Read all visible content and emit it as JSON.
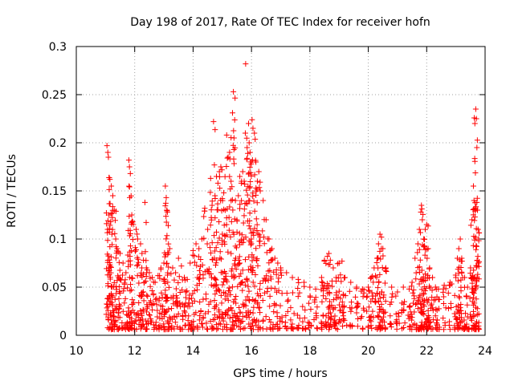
{
  "chart_data": {
    "type": "scatter",
    "title": "Day 198 of 2017, Rate Of TEC Index for receiver hofn",
    "xlabel": "GPS time / hours",
    "ylabel": "ROTI / TECUs",
    "xlim": [
      10,
      24
    ],
    "ylim": [
      0,
      0.3
    ],
    "xticks": [
      10,
      12,
      14,
      16,
      18,
      20,
      22,
      24
    ],
    "xtick_labels": [
      "10",
      "12",
      "14",
      "16",
      "18",
      "20",
      "22",
      "24"
    ],
    "yticks": [
      0,
      0.05,
      0.1,
      0.15,
      0.2,
      0.25,
      0.3
    ],
    "ytick_labels": [
      "0",
      "0.05",
      "0.1",
      "0.15",
      "0.2",
      "0.25",
      "0.3"
    ],
    "grid": true,
    "marker": "+",
    "color": "#ff0000",
    "series": [
      {
        "name": "ROTI",
        "points": [
          [
            11.05,
            0.197
          ],
          [
            11.08,
            0.19
          ],
          [
            11.1,
            0.185
          ],
          [
            11.15,
            0.162
          ],
          [
            11.2,
            0.155
          ],
          [
            11.25,
            0.145
          ],
          [
            11.12,
            0.125
          ],
          [
            11.18,
            0.118
          ],
          [
            11.3,
            0.13
          ],
          [
            11.22,
            0.105
          ],
          [
            11.35,
            0.1
          ],
          [
            11.4,
            0.09
          ],
          [
            11.5,
            0.085
          ],
          [
            11.45,
            0.06
          ],
          [
            11.6,
            0.075
          ],
          [
            11.7,
            0.065
          ],
          [
            11.8,
            0.182
          ],
          [
            11.82,
            0.175
          ],
          [
            11.85,
            0.168
          ],
          [
            11.83,
            0.143
          ],
          [
            11.9,
            0.125
          ],
          [
            11.95,
            0.115
          ],
          [
            12.05,
            0.11
          ],
          [
            12.1,
            0.1
          ],
          [
            12.2,
            0.095
          ],
          [
            12.25,
            0.085
          ],
          [
            12.3,
            0.078
          ],
          [
            12.35,
            0.138
          ],
          [
            12.4,
            0.07
          ],
          [
            12.5,
            0.065
          ],
          [
            12.6,
            0.06
          ],
          [
            12.7,
            0.055
          ],
          [
            12.8,
            0.062
          ],
          [
            12.9,
            0.07
          ],
          [
            13.0,
            0.075
          ],
          [
            13.05,
            0.155
          ],
          [
            13.08,
            0.143
          ],
          [
            13.1,
            0.13
          ],
          [
            13.12,
            0.128
          ],
          [
            13.2,
            0.09
          ],
          [
            13.3,
            0.07
          ],
          [
            13.4,
            0.065
          ],
          [
            13.5,
            0.08
          ],
          [
            13.6,
            0.072
          ],
          [
            13.7,
            0.06
          ],
          [
            13.8,
            0.058
          ],
          [
            13.9,
            0.075
          ],
          [
            14.0,
            0.088
          ],
          [
            14.1,
            0.095
          ],
          [
            14.2,
            0.09
          ],
          [
            14.3,
            0.1
          ],
          [
            14.4,
            0.132
          ],
          [
            14.5,
            0.11
          ],
          [
            14.6,
            0.163
          ],
          [
            14.65,
            0.135
          ],
          [
            14.7,
            0.222
          ],
          [
            14.75,
            0.145
          ],
          [
            14.8,
            0.165
          ],
          [
            14.85,
            0.158
          ],
          [
            14.9,
            0.17
          ],
          [
            14.95,
            0.175
          ],
          [
            15.0,
            0.142
          ],
          [
            15.05,
            0.148
          ],
          [
            15.1,
            0.13
          ],
          [
            15.15,
            0.208
          ],
          [
            15.2,
            0.185
          ],
          [
            15.25,
            0.19
          ],
          [
            15.3,
            0.16
          ],
          [
            15.35,
            0.231
          ],
          [
            15.38,
            0.253
          ],
          [
            15.4,
            0.205
          ],
          [
            15.45,
            0.14
          ],
          [
            15.5,
            0.12
          ],
          [
            15.55,
            0.145
          ],
          [
            15.6,
            0.165
          ],
          [
            15.65,
            0.158
          ],
          [
            15.7,
            0.17
          ],
          [
            15.75,
            0.16
          ],
          [
            15.8,
            0.282
          ],
          [
            15.85,
            0.195
          ],
          [
            15.9,
            0.22
          ],
          [
            15.92,
            0.2
          ],
          [
            15.95,
            0.19
          ],
          [
            16.0,
            0.18
          ],
          [
            16.02,
            0.224
          ],
          [
            16.05,
            0.215
          ],
          [
            16.1,
            0.21
          ],
          [
            16.15,
            0.18
          ],
          [
            16.2,
            0.16
          ],
          [
            16.25,
            0.17
          ],
          [
            16.3,
            0.15
          ],
          [
            16.4,
            0.14
          ],
          [
            16.5,
            0.12
          ],
          [
            16.6,
            0.1
          ],
          [
            16.7,
            0.09
          ],
          [
            16.8,
            0.08
          ],
          [
            16.9,
            0.075
          ],
          [
            17.0,
            0.07
          ],
          [
            17.2,
            0.065
          ],
          [
            17.4,
            0.06
          ],
          [
            17.6,
            0.058
          ],
          [
            17.8,
            0.055
          ],
          [
            18.0,
            0.05
          ],
          [
            18.2,
            0.048
          ],
          [
            18.4,
            0.06
          ],
          [
            18.5,
            0.078
          ],
          [
            18.6,
            0.082
          ],
          [
            18.65,
            0.085
          ],
          [
            18.7,
            0.078
          ],
          [
            18.8,
            0.07
          ],
          [
            18.9,
            0.06
          ],
          [
            19.0,
            0.075
          ],
          [
            19.1,
            0.077
          ],
          [
            19.2,
            0.06
          ],
          [
            19.4,
            0.055
          ],
          [
            19.6,
            0.05
          ],
          [
            19.8,
            0.048
          ],
          [
            20.0,
            0.05
          ],
          [
            20.1,
            0.06
          ],
          [
            20.2,
            0.07
          ],
          [
            20.3,
            0.08
          ],
          [
            20.35,
            0.095
          ],
          [
            20.4,
            0.105
          ],
          [
            20.45,
            0.102
          ],
          [
            20.5,
            0.09
          ],
          [
            20.6,
            0.07
          ],
          [
            20.8,
            0.05
          ],
          [
            21.0,
            0.045
          ],
          [
            21.2,
            0.05
          ],
          [
            21.4,
            0.048
          ],
          [
            21.5,
            0.055
          ],
          [
            21.6,
            0.08
          ],
          [
            21.7,
            0.095
          ],
          [
            21.75,
            0.11
          ],
          [
            21.8,
            0.128
          ],
          [
            21.82,
            0.135
          ],
          [
            21.85,
            0.12
          ],
          [
            21.9,
            0.1
          ],
          [
            21.95,
            0.11
          ],
          [
            22.0,
            0.115
          ],
          [
            22.05,
            0.09
          ],
          [
            22.1,
            0.07
          ],
          [
            22.2,
            0.06
          ],
          [
            22.3,
            0.05
          ],
          [
            22.4,
            0.048
          ],
          [
            22.6,
            0.052
          ],
          [
            22.8,
            0.055
          ],
          [
            23.0,
            0.06
          ],
          [
            23.05,
            0.08
          ],
          [
            23.1,
            0.09
          ],
          [
            23.15,
            0.1
          ],
          [
            23.2,
            0.08
          ],
          [
            23.3,
            0.06
          ],
          [
            23.4,
            0.05
          ],
          [
            23.5,
            0.07
          ],
          [
            23.55,
            0.12
          ],
          [
            23.6,
            0.155
          ],
          [
            23.62,
            0.14
          ],
          [
            23.65,
            0.22
          ],
          [
            23.68,
            0.235
          ],
          [
            23.7,
            0.225
          ],
          [
            23.72,
            0.195
          ],
          [
            23.74,
            0.13
          ],
          [
            23.76,
            0.11
          ],
          [
            23.78,
            0.1
          ]
        ]
      }
    ]
  }
}
